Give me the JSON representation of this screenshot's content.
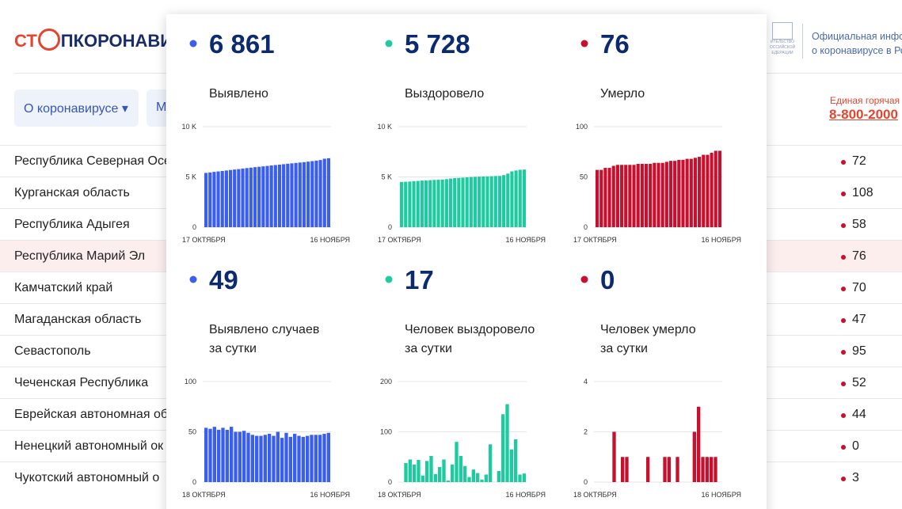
{
  "header": {
    "logo_left": "СТ",
    "logo_right": "ПКОРОНАВИ",
    "emblem": [
      "ИТЕЛЬСТВО",
      "ОССИЙСКОЙ",
      "ЕДЕРАЦИИ"
    ],
    "info": [
      "Официальная инфор",
      "о коронавирусе в Ро"
    ]
  },
  "nav": [
    "О коронавирусе ▾",
    "М"
  ],
  "hotline": {
    "label": "Единая горячая",
    "phone": "8-800-2000"
  },
  "table": {
    "highlight": 3,
    "rows": [
      {
        "name": "Республика Северная Осе",
        "value": 72
      },
      {
        "name": "Курганская область",
        "value": 108
      },
      {
        "name": "Республика Адыгея",
        "value": 58
      },
      {
        "name": "Республика Марий Эл",
        "value": 76
      },
      {
        "name": "Камчатский край",
        "value": 70
      },
      {
        "name": "Магаданская область",
        "value": 47
      },
      {
        "name": "Севастополь",
        "value": 95
      },
      {
        "name": "Чеченская Республика",
        "value": 52
      },
      {
        "name": "Еврейская автономная об",
        "value": 44
      },
      {
        "name": "Ненецкий автономный ок",
        "value": 0
      },
      {
        "name": "Чукотский автономный о",
        "value": 3
      }
    ]
  },
  "chart_data": [
    {
      "type": "bar",
      "headline": "6 861",
      "title": [
        "Выявлено"
      ],
      "color": "#3a5ef0",
      "grid": true,
      "ylim": [
        0,
        10000
      ],
      "yticks": [
        0,
        {
          "value": 5000,
          "label": "5 K"
        },
        {
          "value": 10000,
          "label": "10 K"
        }
      ],
      "categories": [
        "17 ОКТЯБРЯ",
        null,
        null,
        null,
        null,
        null,
        null,
        null,
        null,
        null,
        null,
        null,
        null,
        null,
        null,
        null,
        null,
        null,
        null,
        null,
        null,
        null,
        null,
        null,
        null,
        null,
        null,
        null,
        null,
        null,
        "16 НОЯБРЯ"
      ],
      "values": [
        5400,
        5450,
        5500,
        5545,
        5590,
        5640,
        5690,
        5735,
        5780,
        5830,
        5880,
        5925,
        5970,
        6010,
        6050,
        6095,
        6140,
        6180,
        6220,
        6265,
        6310,
        6350,
        6390,
        6430,
        6470,
        6520,
        6570,
        6620,
        6680,
        6812,
        6861
      ]
    },
    {
      "type": "bar",
      "headline": "5 728",
      "title": [
        "Выздоровело"
      ],
      "color": "#1ecba0",
      "grid": true,
      "ylim": [
        0,
        10000
      ],
      "yticks": [
        0,
        {
          "value": 5000,
          "label": "5 K"
        },
        {
          "value": 10000,
          "label": "10 K"
        }
      ],
      "categories": [
        "17 ОКТЯБРЯ",
        null,
        null,
        null,
        null,
        null,
        null,
        null,
        null,
        null,
        null,
        null,
        null,
        null,
        null,
        null,
        null,
        null,
        null,
        null,
        null,
        null,
        null,
        null,
        null,
        null,
        null,
        null,
        null,
        null,
        "16 НОЯБРЯ"
      ],
      "values": [
        4500,
        4520,
        4540,
        4580,
        4600,
        4640,
        4660,
        4680,
        4700,
        4720,
        4740,
        4780,
        4840,
        4880,
        4900,
        4930,
        4960,
        4990,
        5010,
        5030,
        5040,
        5050,
        5070,
        5090,
        5100,
        5180,
        5330,
        5550,
        5640,
        5711,
        5728
      ]
    },
    {
      "type": "bar",
      "headline": "76",
      "title": [
        "Умерло"
      ],
      "color": "#c8102e",
      "grid": true,
      "ylim": [
        0,
        100
      ],
      "yticks": [
        0,
        50,
        100
      ],
      "categories": [
        "17 ОКТЯБРЯ",
        null,
        null,
        null,
        null,
        null,
        null,
        null,
        null,
        null,
        null,
        null,
        null,
        null,
        null,
        null,
        null,
        null,
        null,
        null,
        null,
        null,
        null,
        null,
        null,
        null,
        null,
        null,
        null,
        null,
        "16 НОЯБРЯ"
      ],
      "values": [
        57,
        57,
        59,
        59,
        61,
        62,
        62,
        62,
        62,
        62,
        63,
        63,
        63,
        63,
        64,
        64,
        64,
        65,
        66,
        66,
        67,
        67,
        68,
        68,
        69,
        70,
        72,
        72,
        74,
        76,
        76
      ]
    },
    {
      "type": "bar",
      "headline": "49",
      "title": [
        "Выявлено случаев",
        "за сутки"
      ],
      "color": "#3a5ef0",
      "grid": true,
      "ylim": [
        0,
        100
      ],
      "yticks": [
        0,
        50,
        100
      ],
      "categories": [
        "18 ОКТЯБРЯ",
        null,
        null,
        null,
        null,
        null,
        null,
        null,
        null,
        null,
        null,
        null,
        null,
        null,
        null,
        null,
        null,
        null,
        null,
        null,
        null,
        null,
        null,
        null,
        null,
        null,
        null,
        null,
        null,
        "16 НОЯБРЯ"
      ],
      "values": [
        54,
        53,
        55,
        52,
        54,
        52,
        55,
        50,
        50,
        51,
        49,
        47,
        46,
        46,
        47,
        48,
        46,
        50,
        44,
        49,
        45,
        48,
        46,
        45,
        46,
        47,
        47,
        47,
        48,
        49
      ]
    },
    {
      "type": "bar",
      "headline": "17",
      "title": [
        "Человек выздоровело",
        "за сутки"
      ],
      "color": "#1ecba0",
      "grid": true,
      "ylim": [
        0,
        200
      ],
      "yticks": [
        0,
        100,
        200
      ],
      "categories": [
        "18 ОКТЯБРЯ",
        null,
        null,
        null,
        null,
        null,
        null,
        null,
        null,
        null,
        null,
        null,
        null,
        null,
        null,
        null,
        null,
        null,
        null,
        null,
        null,
        null,
        null,
        null,
        null,
        null,
        null,
        null,
        null,
        "16 НОЯБРЯ"
      ],
      "values": [
        0,
        38,
        45,
        35,
        44,
        13,
        42,
        52,
        16,
        30,
        45,
        3,
        35,
        80,
        52,
        32,
        10,
        25,
        18,
        5,
        15,
        75,
        0,
        22,
        135,
        155,
        65,
        85,
        15,
        17
      ]
    },
    {
      "type": "bar",
      "headline": "0",
      "title": [
        "Человек умерло",
        "за сутки"
      ],
      "color": "#c8102e",
      "grid": true,
      "ylim": [
        0,
        4
      ],
      "yticks": [
        0,
        2,
        4
      ],
      "categories": [
        "18 ОКТЯБРЯ",
        null,
        null,
        null,
        null,
        null,
        null,
        null,
        null,
        null,
        null,
        null,
        null,
        null,
        null,
        null,
        null,
        null,
        null,
        null,
        null,
        null,
        null,
        null,
        null,
        null,
        null,
        null,
        null,
        "16 НОЯБРЯ"
      ],
      "values": [
        0,
        0,
        0,
        0,
        2,
        0,
        1,
        1,
        0,
        0,
        0,
        0,
        1,
        0,
        0,
        0,
        1,
        1,
        0,
        1,
        0,
        0,
        0,
        2,
        3,
        1,
        1,
        1,
        1,
        0
      ]
    }
  ]
}
